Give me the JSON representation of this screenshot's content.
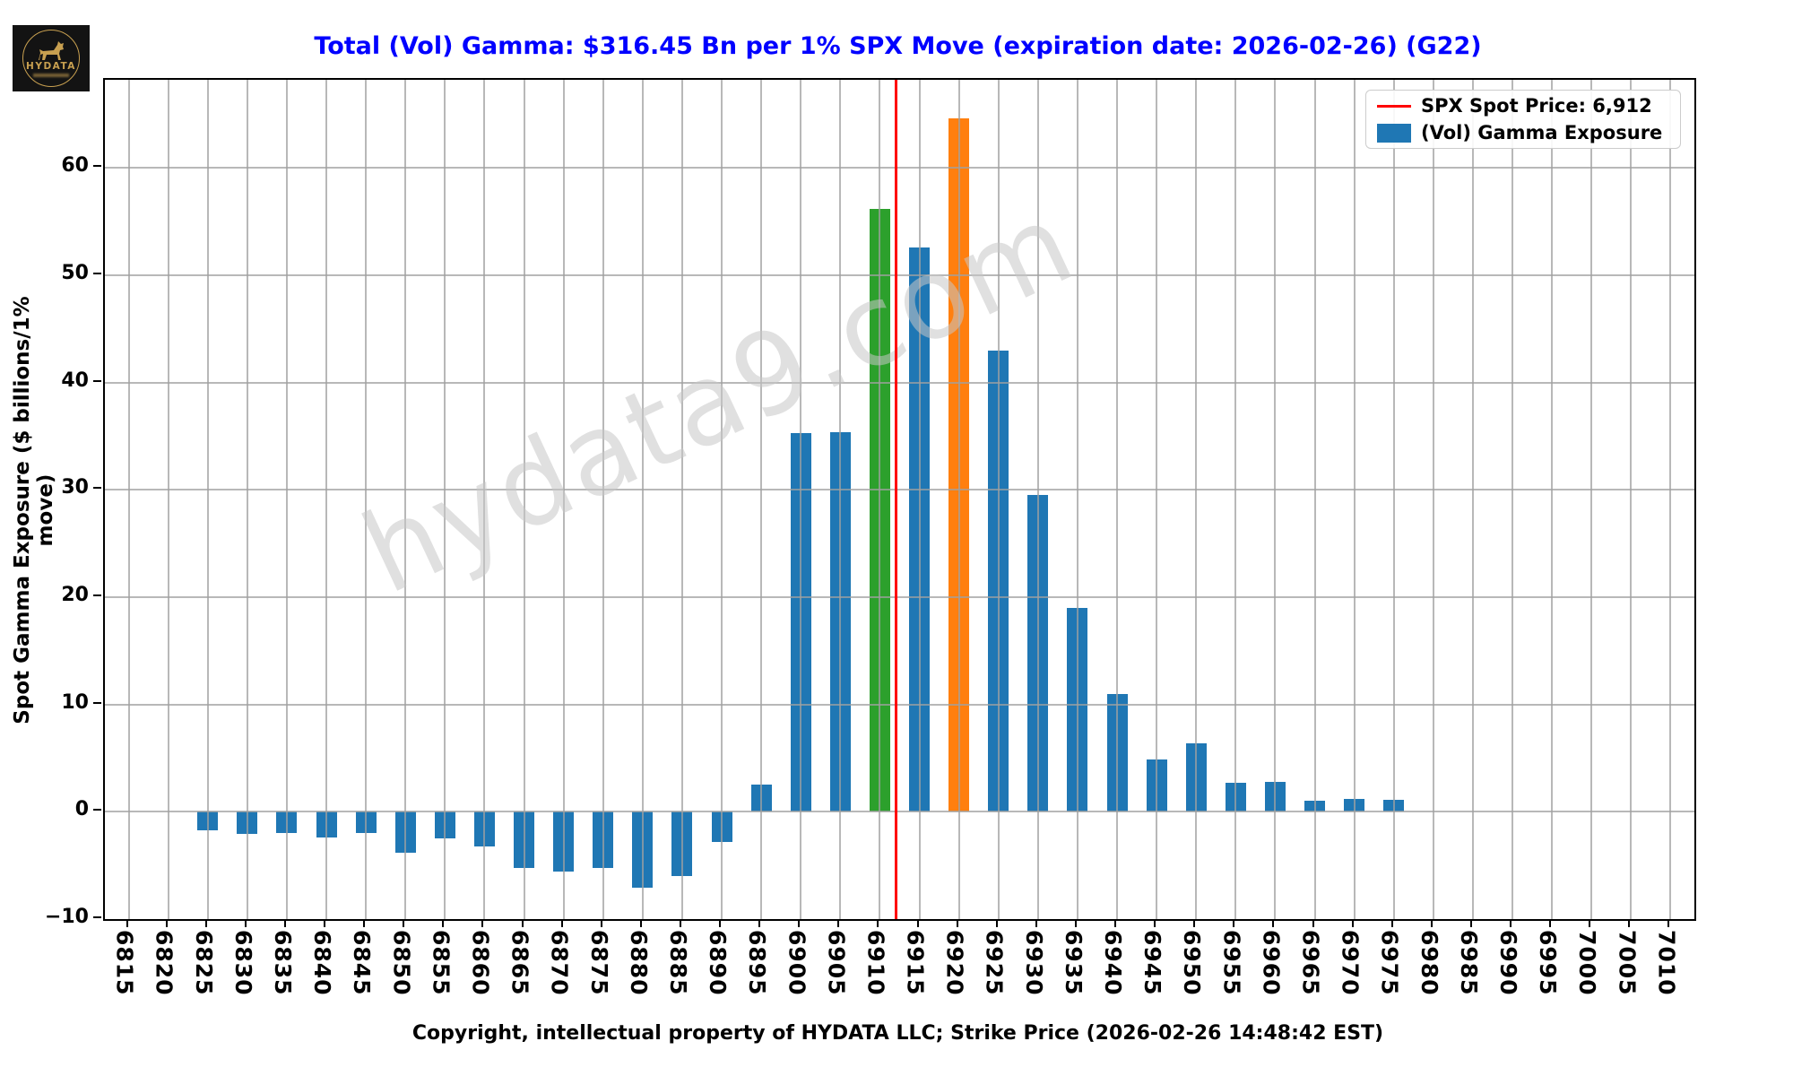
{
  "logo": {
    "brand": "HYDATA"
  },
  "title": "Total (Vol) Gamma: $316.45 Bn per 1% SPX Move (expiration date: 2026-02-26) (G22)",
  "watermark": "hydata9.com",
  "legend": {
    "spot_label": "SPX Spot Price: 6,912",
    "gamma_label": "(Vol) Gamma Exposure"
  },
  "axes": {
    "ylabel": "Spot Gamma Exposure ($ billions/1% move)",
    "xlabel": "Copyright, intellectual property of HYDATA LLC; Strike Price (2026-02-26 14:48:42 EST)"
  },
  "chart_data": {
    "type": "bar",
    "title": "Total (Vol) Gamma: $316.45 Bn per 1% SPX Move (expiration date: 2026-02-26) (G22)",
    "xlabel": "Copyright, intellectual property of HYDATA LLC; Strike Price (2026-02-26 14:48:42 EST)",
    "ylabel": "Spot Gamma Exposure ($ billions/1% move)",
    "categories": [
      6815,
      6820,
      6825,
      6830,
      6835,
      6840,
      6845,
      6850,
      6855,
      6860,
      6865,
      6870,
      6875,
      6880,
      6885,
      6890,
      6895,
      6900,
      6905,
      6910,
      6915,
      6920,
      6925,
      6930,
      6935,
      6940,
      6945,
      6950,
      6955,
      6960,
      6965,
      6970,
      6975,
      6980,
      6985,
      6990,
      6995,
      7000,
      7005,
      7010
    ],
    "values": [
      0,
      0,
      -1.7,
      -2.1,
      -2.0,
      -2.4,
      -2.0,
      -3.8,
      -2.5,
      -3.2,
      -5.2,
      -5.6,
      -5.2,
      -7.1,
      -6.0,
      -2.8,
      2.5,
      35.3,
      35.4,
      56.2,
      52.6,
      64.6,
      43.0,
      29.5,
      19.0,
      11.0,
      4.9,
      6.4,
      2.7,
      2.8,
      1.0,
      1.2,
      1.1,
      0,
      0,
      0,
      0,
      0,
      0,
      0
    ],
    "series_name": "(Vol) Gamma Exposure",
    "bar_color": "#1f77b4",
    "highlight_colors": {
      "6910": "#2ca02c",
      "6920": "#ff7f0e"
    },
    "spot_price": 6912,
    "spot_line_color": "#ff0000",
    "total_gamma_bn": 316.45,
    "expiration_date": "2026-02-26",
    "ylim": [
      -10,
      68.2
    ],
    "yticks": [
      -10,
      0,
      10,
      20,
      30,
      40,
      50,
      60
    ],
    "grid": true,
    "grid_on_top": true,
    "legend_position": "top-right"
  }
}
